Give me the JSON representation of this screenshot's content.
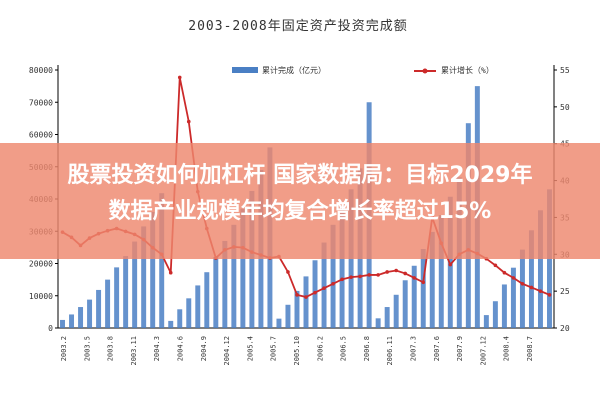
{
  "headline": {
    "line1": "股票投资如何加杠杆 国家数据局：目标2029年",
    "line2": "数据产业规模年均复合增长率超过15%"
  },
  "chart_data": {
    "type": "bar",
    "title": "2003-2008年固定资产投资完成额",
    "legend": [
      {
        "label": "累计完成（亿元）",
        "kind": "bar",
        "color": "#4a7fc4"
      },
      {
        "label": "累计增长（%）",
        "kind": "line",
        "color": "#cc2a2a"
      }
    ],
    "legend_position": "top",
    "grid": false,
    "y_left": {
      "ticks": [
        "0",
        "10000",
        "20000",
        "30000",
        "40000",
        "50000",
        "60000",
        "70000",
        "80000"
      ],
      "range": [
        0,
        80000
      ]
    },
    "y_right": {
      "ticks": [
        "20",
        "25",
        "30",
        "35",
        "40",
        "45",
        "50",
        "55"
      ],
      "range": [
        20,
        55
      ]
    },
    "x_tick_labels": [
      "2003.2",
      "2003.5",
      "2003.8",
      "2003.11",
      "2004.3",
      "2004.6",
      "2004.9",
      "2004.12",
      "2005.4",
      "2005.7",
      "2005.10",
      "2006.2",
      "2006.5",
      "2006.8",
      "2006.11",
      "2007.3",
      "2007.6",
      "2007.9",
      "2007.12",
      "2008.4",
      "2008.7"
    ],
    "values": [
      2500,
      4200,
      6500,
      8800,
      11800,
      15000,
      18800,
      22300,
      26800,
      31500,
      36000,
      41800,
      2200,
      5800,
      9200,
      13200,
      17300,
      22000,
      27000,
      32000,
      37000,
      42500,
      49000,
      56000,
      2900,
      7200,
      11500,
      16000,
      21000,
      26500,
      32000,
      37500,
      43000,
      49500,
      70000,
      3000,
      6500,
      10300,
      14800,
      19300,
      24500,
      29800,
      35000,
      40700,
      46700,
      63500,
      75000,
      4000,
      8300,
      13500,
      18700,
      24300,
      30300,
      36500,
      43000
    ],
    "growth": [
      33.0,
      32.3,
      31.2,
      32.2,
      32.8,
      33.2,
      33.5,
      33.1,
      32.7,
      32.0,
      30.9,
      30.0,
      27.5,
      54.0,
      48.0,
      38.5,
      33.5,
      29.5,
      30.6,
      31.0,
      30.9,
      30.3,
      29.9,
      29.5,
      29.7,
      27.6,
      24.5,
      24.2,
      24.8,
      25.4,
      26.0,
      26.6,
      26.9,
      27.0,
      27.2,
      27.2,
      27.6,
      27.8,
      27.4,
      26.8,
      26.2,
      35.0,
      31.5,
      28.6,
      30.0,
      30.6,
      30.1,
      29.4,
      28.5,
      27.5,
      26.8,
      26.0,
      25.5,
      25.0,
      24.5
    ]
  }
}
